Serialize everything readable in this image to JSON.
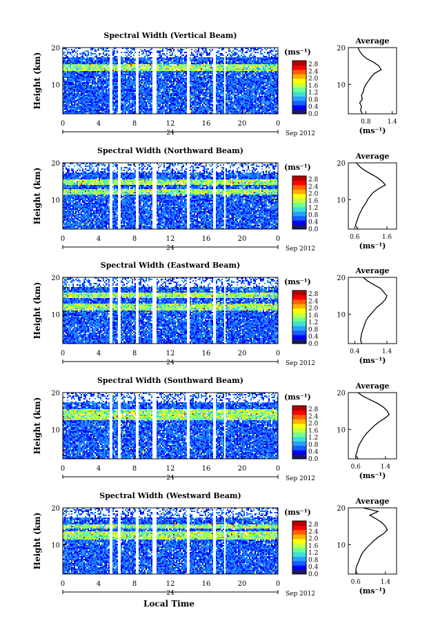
{
  "figure": {
    "xlabel": "Local Time",
    "date_label": "Sep 2012",
    "day_label": "24",
    "unit_label": "(ms⁻¹)",
    "average_title": "Average",
    "colormap": [
      "#1a1a5e",
      "#0000ff",
      "#1560ff",
      "#2aa0ff",
      "#40e0d0",
      "#70ff90",
      "#c8ff40",
      "#ffff00",
      "#ffb000",
      "#ff6000",
      "#ff0000",
      "#b00000"
    ]
  },
  "chart_data": [
    {
      "type": "heatmap",
      "title": "Spectral Width (Vertical Beam)",
      "ylabel": "Height (km)",
      "xlim": [
        0,
        24
      ],
      "ylim": [
        2,
        20
      ],
      "xticks": [
        "0",
        "4",
        "8",
        "12",
        "16",
        "20",
        "0"
      ],
      "yticks": [
        "10",
        "20"
      ],
      "colorbar": {
        "ticks": [
          "0.0",
          "0.4",
          "0.8",
          "1.2",
          "1.6",
          "2.0",
          "2.4",
          "2.8"
        ],
        "range": [
          0.0,
          3.0
        ]
      },
      "gaps_hours": [
        [
          5.3,
          5.6
        ],
        [
          6.2,
          6.5
        ],
        [
          8.1,
          8.5
        ],
        [
          10.0,
          10.4
        ],
        [
          13.8,
          14.1
        ],
        [
          16.8,
          17.1
        ],
        [
          18.0,
          18.2
        ]
      ],
      "enhanced_layers_km": [
        [
          13.5,
          15.5
        ]
      ],
      "average_profile": {
        "xlim": [
          0.4,
          1.5
        ],
        "xticks": [
          "0.8",
          "1.4"
        ],
        "ylim": [
          2,
          20
        ],
        "yticks": [
          "10",
          "20"
        ],
        "height_km": [
          2,
          3,
          4,
          5,
          6,
          7,
          8,
          9,
          10,
          11,
          12,
          13,
          14,
          15,
          16,
          17,
          18,
          19,
          20
        ],
        "width_ms": [
          0.72,
          0.68,
          0.7,
          0.66,
          0.72,
          0.7,
          0.74,
          0.76,
          0.8,
          0.86,
          0.92,
          1.0,
          1.15,
          1.1,
          0.98,
          0.82,
          0.72,
          0.66,
          0.62
        ]
      }
    },
    {
      "type": "heatmap",
      "title": "Spectral Width (Northward Beam)",
      "ylabel": "Height (km)",
      "xlim": [
        0,
        24
      ],
      "ylim": [
        2,
        20
      ],
      "xticks": [
        "0",
        "4",
        "8",
        "12",
        "16",
        "20",
        "0"
      ],
      "yticks": [
        "10",
        "20"
      ],
      "colorbar": {
        "ticks": [
          "0.0",
          "0.4",
          "0.8",
          "1.2",
          "1.6",
          "2.0",
          "2.4",
          "2.8"
        ],
        "range": [
          0.0,
          3.0
        ]
      },
      "gaps_hours": [
        [
          5.3,
          5.6
        ],
        [
          6.2,
          6.5
        ],
        [
          8.1,
          8.5
        ],
        [
          10.0,
          10.4
        ],
        [
          13.8,
          14.1
        ],
        [
          16.8,
          17.1
        ],
        [
          18.0,
          18.2
        ]
      ],
      "enhanced_layers_km": [
        [
          11.5,
          13.0
        ],
        [
          14.0,
          15.5
        ]
      ],
      "average_profile": {
        "xlim": [
          0.4,
          1.9
        ],
        "xticks": [
          "0.6",
          "1.6"
        ],
        "ylim": [
          2,
          20
        ],
        "yticks": [
          "10",
          "20"
        ],
        "height_km": [
          2,
          3,
          4,
          5,
          6,
          7,
          8,
          9,
          10,
          11,
          12,
          13,
          14,
          15,
          16,
          17,
          18,
          19,
          20
        ],
        "width_ms": [
          0.7,
          0.62,
          0.66,
          0.7,
          0.74,
          0.8,
          0.86,
          0.94,
          1.0,
          1.08,
          1.18,
          1.35,
          1.55,
          1.45,
          1.3,
          1.1,
          0.9,
          0.75,
          0.65
        ]
      }
    },
    {
      "type": "heatmap",
      "title": "Spectral Width (Eastward Beam)",
      "ylabel": "Height (km)",
      "xlim": [
        0,
        24
      ],
      "ylim": [
        2,
        20
      ],
      "xticks": [
        "0",
        "4",
        "8",
        "12",
        "16",
        "20",
        "0"
      ],
      "yticks": [
        "10",
        "20"
      ],
      "colorbar": {
        "ticks": [
          "0.0",
          "0.4",
          "0.8",
          "1.2",
          "1.6",
          "2.0",
          "2.4",
          "2.8"
        ],
        "range": [
          0.0,
          3.0
        ]
      },
      "gaps_hours": [
        [
          5.3,
          5.6
        ],
        [
          6.2,
          6.5
        ],
        [
          8.1,
          8.5
        ],
        [
          10.0,
          10.4
        ],
        [
          13.8,
          14.1
        ],
        [
          16.8,
          17.1
        ],
        [
          18.0,
          18.2
        ]
      ],
      "enhanced_layers_km": [
        [
          11.0,
          13.0
        ],
        [
          14.5,
          16.0
        ]
      ],
      "average_profile": {
        "xlim": [
          0.2,
          1.7
        ],
        "xticks": [
          "0.4",
          "1.4"
        ],
        "ylim": [
          2,
          20
        ],
        "yticks": [
          "10",
          "20"
        ],
        "height_km": [
          2,
          3,
          4,
          5,
          6,
          7,
          8,
          9,
          10,
          11,
          12,
          13,
          14,
          15,
          16,
          17,
          18,
          19,
          20
        ],
        "width_ms": [
          0.62,
          0.58,
          0.6,
          0.62,
          0.66,
          0.7,
          0.74,
          0.8,
          0.9,
          1.0,
          1.1,
          1.25,
          1.35,
          1.4,
          1.3,
          1.2,
          1.0,
          0.8,
          0.66
        ]
      }
    },
    {
      "type": "heatmap",
      "title": "Spectral Width (Southward Beam)",
      "ylabel": "Height (km)",
      "xlim": [
        0,
        24
      ],
      "ylim": [
        2,
        20
      ],
      "xticks": [
        "0",
        "4",
        "8",
        "12",
        "16",
        "20",
        "0"
      ],
      "yticks": [
        "10",
        "20"
      ],
      "colorbar": {
        "ticks": [
          "0.0",
          "0.4",
          "0.8",
          "1.2",
          "1.6",
          "2.0",
          "2.4",
          "2.8"
        ],
        "range": [
          0.0,
          3.0
        ]
      },
      "gaps_hours": [
        [
          5.3,
          5.6
        ],
        [
          6.2,
          6.5
        ],
        [
          8.1,
          8.5
        ],
        [
          10.0,
          10.4
        ],
        [
          13.8,
          14.1
        ],
        [
          16.8,
          17.1
        ],
        [
          18.0,
          18.2
        ]
      ],
      "enhanced_layers_km": [
        [
          12.5,
          15.5
        ]
      ],
      "average_profile": {
        "xlim": [
          0.4,
          1.7
        ],
        "xticks": [
          "0.6",
          "1.4"
        ],
        "ylim": [
          2,
          20
        ],
        "yticks": [
          "10",
          "20"
        ],
        "height_km": [
          2,
          3,
          4,
          5,
          6,
          7,
          8,
          9,
          10,
          11,
          12,
          13,
          14,
          15,
          16,
          17,
          18,
          19,
          20
        ],
        "width_ms": [
          0.66,
          0.6,
          0.64,
          0.66,
          0.7,
          0.76,
          0.82,
          0.9,
          1.0,
          1.1,
          1.22,
          1.38,
          1.5,
          1.45,
          1.35,
          1.2,
          1.0,
          0.8,
          0.66
        ]
      }
    },
    {
      "type": "heatmap",
      "title": "Spectral Width (Westward Beam)",
      "ylabel": "Height (km)",
      "xlim": [
        0,
        24
      ],
      "ylim": [
        2,
        20
      ],
      "xticks": [
        "0",
        "4",
        "8",
        "12",
        "16",
        "20",
        "0"
      ],
      "yticks": [
        "10",
        "20"
      ],
      "colorbar": {
        "ticks": [
          "0.0",
          "0.4",
          "0.8",
          "1.2",
          "1.6",
          "2.0",
          "2.4",
          "2.8"
        ],
        "range": [
          0.0,
          3.0
        ]
      },
      "gaps_hours": [
        [
          5.3,
          5.6
        ],
        [
          6.2,
          6.5
        ],
        [
          8.1,
          8.5
        ],
        [
          10.0,
          10.4
        ],
        [
          13.8,
          14.1
        ],
        [
          16.8,
          17.1
        ],
        [
          18.0,
          18.2
        ]
      ],
      "enhanced_layers_km": [
        [
          11.5,
          13.5
        ],
        [
          14.5,
          15.5
        ]
      ],
      "average_profile": {
        "xlim": [
          0.4,
          1.7
        ],
        "xticks": [
          "0.6",
          "1.4"
        ],
        "ylim": [
          2,
          20
        ],
        "yticks": [
          "10",
          "20"
        ],
        "height_km": [
          2,
          3,
          4,
          5,
          6,
          7,
          8,
          9,
          10,
          11,
          12,
          13,
          14,
          15,
          16,
          17,
          18,
          19,
          20
        ],
        "width_ms": [
          0.64,
          0.6,
          0.62,
          0.66,
          0.7,
          0.74,
          0.8,
          0.88,
          0.98,
          1.08,
          1.2,
          1.35,
          1.45,
          1.4,
          1.3,
          1.15,
          0.98,
          1.2,
          0.8
        ]
      }
    }
  ]
}
